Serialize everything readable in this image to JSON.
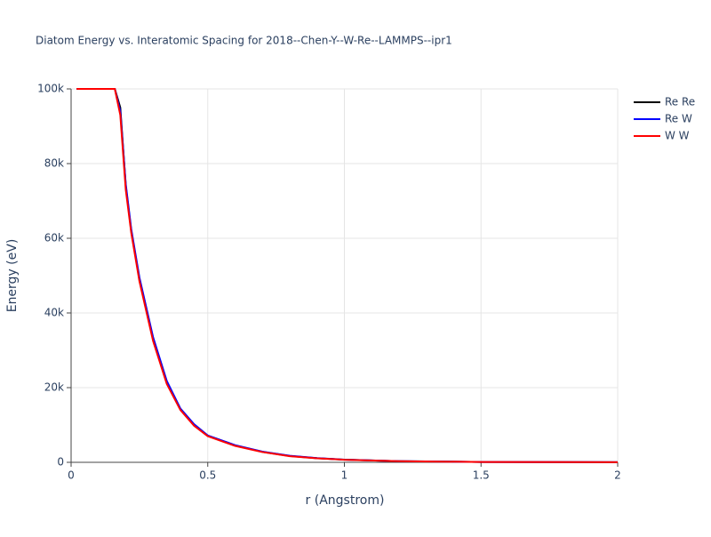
{
  "chart_data": {
    "type": "line",
    "title": "Diatom Energy vs. Interatomic Spacing for 2018--Chen-Y--W-Re--LAMMPS--ipr1",
    "x_label": "r (Angstrom)",
    "y_label": "Energy (eV)",
    "x": [
      0.02,
      0.16,
      0.18,
      0.2,
      0.22,
      0.25,
      0.3,
      0.35,
      0.4,
      0.45,
      0.5,
      0.6,
      0.7,
      0.8,
      0.9,
      1.0,
      1.2,
      1.5,
      2.0
    ],
    "series": [
      {
        "name": "Re Re",
        "color": "#000000",
        "values": [
          100000,
          100000,
          95000,
          74000,
          62000,
          49000,
          33000,
          21500,
          14200,
          10000,
          7100,
          4500,
          2800,
          1700,
          1100,
          700,
          300,
          100,
          30
        ]
      },
      {
        "name": "Re W",
        "color": "#0000ff",
        "values": [
          100000,
          100000,
          94000,
          74500,
          62500,
          49500,
          33500,
          21800,
          14400,
          10200,
          7200,
          4600,
          2850,
          1750,
          1120,
          720,
          310,
          100,
          30
        ]
      },
      {
        "name": "W W",
        "color": "#ff0000",
        "values": [
          100000,
          100000,
          93000,
          73000,
          61500,
          48500,
          32500,
          21000,
          14000,
          9800,
          7000,
          4400,
          2750,
          1650,
          1080,
          690,
          290,
          95,
          28
        ]
      }
    ],
    "xlim": [
      0,
      2
    ],
    "xticks": [
      0,
      0.5,
      1,
      1.5,
      2
    ],
    "ylim": [
      0,
      100000
    ],
    "yticks": [
      {
        "value": 0,
        "label": "0"
      },
      {
        "value": 20000,
        "label": "20k"
      },
      {
        "value": 40000,
        "label": "40k"
      },
      {
        "value": 60000,
        "label": "60k"
      },
      {
        "value": 80000,
        "label": "80k"
      },
      {
        "value": 100000,
        "label": "100k"
      }
    ],
    "grid": true,
    "legend": "top-right"
  }
}
